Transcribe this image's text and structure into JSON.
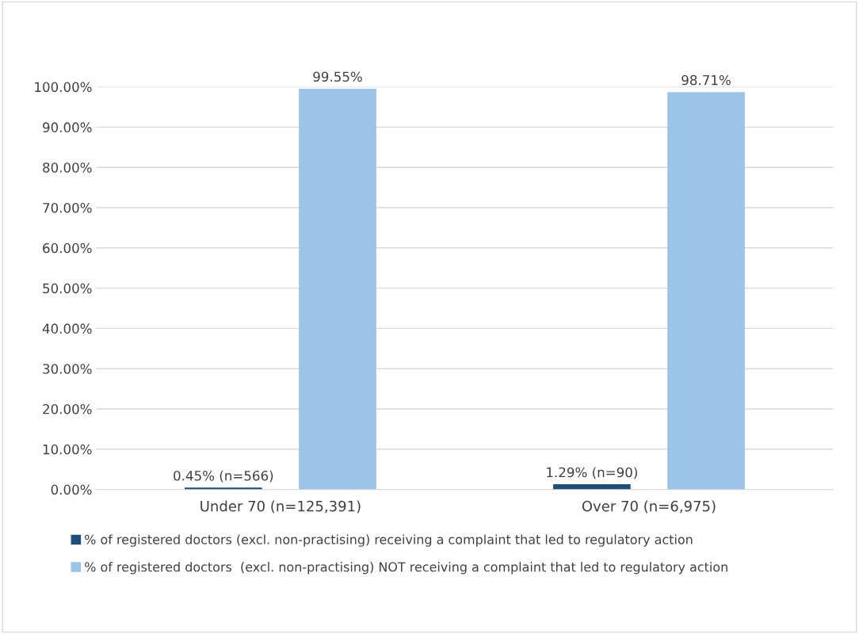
{
  "chart_data": {
    "type": "bar",
    "categories": [
      "Under 70 (n=125,391)",
      "Over 70 (n=6,975)"
    ],
    "series": [
      {
        "name": "% of registered doctors (excl. non-practising) receiving a complaint that led to regulatory action",
        "color": "#1f4e79",
        "values": [
          0.45,
          1.29
        ],
        "value_labels": [
          "0.45% (n=566)",
          "1.29% (n=90)"
        ]
      },
      {
        "name": "% of registered doctors  (excl. non-practising) NOT receiving a complaint that led to regulatory action",
        "color": "#9dc3e6",
        "values": [
          99.55,
          98.71
        ],
        "value_labels": [
          "99.55%",
          "98.71%"
        ]
      }
    ],
    "ylim": [
      0,
      100
    ],
    "yticks": [
      {
        "value": 0,
        "label": "0.00%"
      },
      {
        "value": 10,
        "label": "10.00%"
      },
      {
        "value": 20,
        "label": "20.00%"
      },
      {
        "value": 30,
        "label": "30.00%"
      },
      {
        "value": 40,
        "label": "40.00%"
      },
      {
        "value": 50,
        "label": "50.00%"
      },
      {
        "value": 60,
        "label": "60.00%"
      },
      {
        "value": 70,
        "label": "70.00%"
      },
      {
        "value": 80,
        "label": "80.00%"
      },
      {
        "value": 90,
        "label": "90.00%"
      },
      {
        "value": 100,
        "label": "100.00%"
      }
    ],
    "grid": "y",
    "legend": "bottom"
  }
}
